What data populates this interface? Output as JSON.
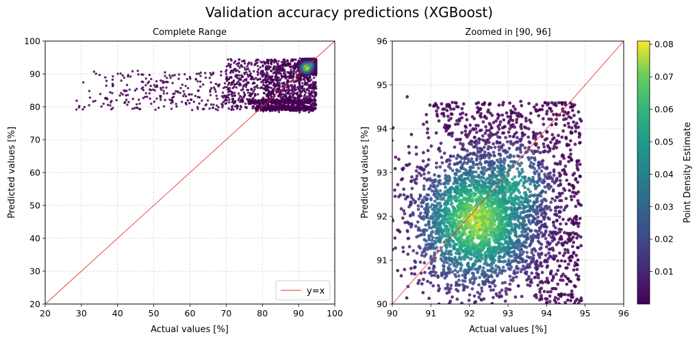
{
  "figure": {
    "title": "Validation accuracy predictions (XGBoost)"
  },
  "colors": {
    "identity_line": "#e8332e",
    "low_density": "#440154",
    "high_density": "#fde725"
  },
  "chart_data": [
    {
      "type": "scatter",
      "title": "Complete Range",
      "xlabel": "Actual values [%]",
      "ylabel": "Predicted values [%]",
      "xlim": [
        20,
        100
      ],
      "ylim": [
        20,
        100
      ],
      "xticks": [
        "20",
        "30",
        "40",
        "50",
        "60",
        "70",
        "80",
        "90",
        "100"
      ],
      "yticks": [
        "20",
        "30",
        "40",
        "50",
        "60",
        "70",
        "80",
        "90",
        "100"
      ],
      "grid": true,
      "legend": {
        "placement": "bottom-right",
        "entries": [
          "y=x"
        ]
      },
      "reference_line": {
        "label": "y=x",
        "slope": 1,
        "intercept": 0
      },
      "points_summary": {
        "dense_cluster": {
          "x": [
            82,
            95
          ],
          "y": [
            78,
            95
          ],
          "peak": [
            92,
            92
          ]
        },
        "sparse_tail": {
          "x": [
            26,
            80
          ],
          "y": [
            78,
            91
          ]
        }
      }
    },
    {
      "type": "scatter",
      "title": "Zoomed in [90, 96]",
      "xlabel": "Actual values [%]",
      "ylabel": "Predicted values [%]",
      "xlim": [
        90,
        96
      ],
      "ylim": [
        90,
        96
      ],
      "xticks": [
        "90",
        "91",
        "92",
        "93",
        "94",
        "95",
        "96"
      ],
      "yticks": [
        "90",
        "91",
        "92",
        "93",
        "94",
        "95",
        "96"
      ],
      "grid": true,
      "reference_line": {
        "slope": 1,
        "intercept": 0
      },
      "colorbar": {
        "label": "Point Density Estimate",
        "range": [
          0.0,
          0.081
        ],
        "ticks": [
          "0.01",
          "0.02",
          "0.03",
          "0.04",
          "0.05",
          "0.06",
          "0.07",
          "0.08"
        ],
        "colormap": "viridis"
      },
      "points_summary": {
        "x": [
          90,
          95
        ],
        "y": [
          90,
          94.7
        ],
        "density_peak": [
          92.2,
          91.8
        ]
      }
    }
  ]
}
